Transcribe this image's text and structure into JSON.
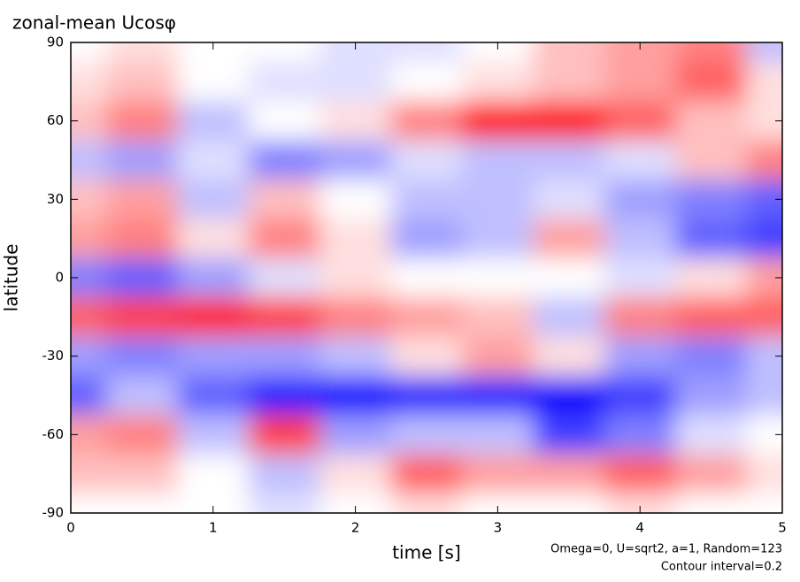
{
  "chart_data": {
    "type": "contour",
    "title": "zonal-mean Ucosφ",
    "xlabel": "time [s]",
    "ylabel": "latitude",
    "annotations": [
      "Omega=0, U=sqrt2, a=1, Random=123",
      "Contour interval=0.2"
    ],
    "x": [
      0,
      0.5,
      1,
      1.5,
      2,
      2.5,
      3,
      3.5,
      4,
      4.5,
      5
    ],
    "y": [
      90,
      75,
      60,
      45,
      30,
      15,
      0,
      -15,
      -30,
      -45,
      -60,
      -75,
      -90
    ],
    "z": [
      [
        0,
        0.2,
        0,
        0,
        -0.2,
        -0.2,
        0,
        0.4,
        0.6,
        0.8,
        -0.4
      ],
      [
        0.2,
        0.4,
        0,
        -0.2,
        -0.2,
        0,
        0.2,
        0.4,
        0.6,
        1.0,
        0.2
      ],
      [
        0.4,
        0.8,
        -0.4,
        0,
        0.2,
        0.8,
        1.6,
        1.6,
        1.0,
        0.4,
        0.2
      ],
      [
        -0.4,
        -0.6,
        -0.2,
        -0.8,
        -0.6,
        -0.2,
        -0.4,
        -0.4,
        -0.2,
        0.4,
        0.8
      ],
      [
        0.4,
        0.6,
        -0.4,
        0.4,
        0,
        -0.4,
        -0.4,
        -0.2,
        -0.6,
        -0.8,
        -1.0
      ],
      [
        0.6,
        0.8,
        0.2,
        0.8,
        0.2,
        -0.6,
        -0.4,
        0.6,
        -0.4,
        -1.0,
        -1.2
      ],
      [
        -0.8,
        -1.0,
        -0.6,
        -0.2,
        0.2,
        0,
        0,
        0,
        -0.2,
        0.2,
        0.6
      ],
      [
        1.0,
        1.2,
        1.4,
        1.2,
        0.8,
        0.6,
        0.4,
        -0.4,
        0.8,
        1.0,
        1.0
      ],
      [
        -0.6,
        -0.8,
        -0.6,
        -0.6,
        -0.4,
        0.2,
        0.6,
        0.2,
        -0.6,
        -0.8,
        -0.4
      ],
      [
        -1.0,
        -0.4,
        -1.0,
        -1.4,
        -1.6,
        -1.4,
        -1.4,
        -1.6,
        -1.2,
        -0.6,
        -0.4
      ],
      [
        0.6,
        0.8,
        -0.4,
        1.2,
        -0.6,
        -0.4,
        -0.4,
        -1.2,
        -0.8,
        -0.2,
        0
      ],
      [
        0.4,
        0.4,
        0,
        -0.4,
        0.2,
        1.0,
        0.6,
        0.6,
        1.0,
        0.6,
        0.2
      ],
      [
        0,
        0,
        0,
        -0.2,
        0,
        0.2,
        0,
        0,
        0.2,
        0,
        0
      ]
    ],
    "colors": {
      "positive": "#ff0000",
      "negative": "#0000ff"
    },
    "xlim": [
      0,
      5
    ],
    "xticks": [
      0,
      1,
      2,
      3,
      4,
      5
    ],
    "ylim": [
      -90,
      90
    ],
    "yticks": [
      -90,
      -60,
      -30,
      0,
      30,
      60,
      90
    ]
  }
}
